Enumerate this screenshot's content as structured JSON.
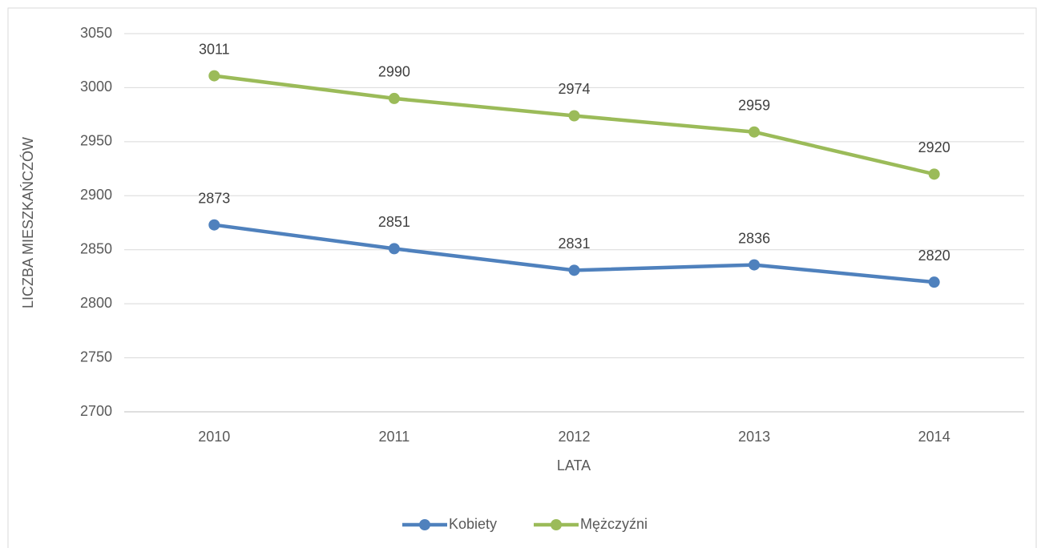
{
  "chart_data": {
    "type": "line",
    "categories": [
      "2010",
      "2011",
      "2012",
      "2013",
      "2014"
    ],
    "series": [
      {
        "name": "Kobiety",
        "color": "#4f81bd",
        "values": [
          2873,
          2851,
          2831,
          2836,
          2820
        ]
      },
      {
        "name": "Mężczyźni",
        "color": "#9bbb59",
        "values": [
          3011,
          2990,
          2974,
          2959,
          2920
        ]
      }
    ],
    "ylim": [
      2700,
      3050
    ],
    "yticks": [
      2700,
      2750,
      2800,
      2850,
      2900,
      2950,
      3000,
      3050
    ],
    "xlabel": "LATA",
    "ylabel": "LICZBA MIESZKAŃCZÓW",
    "grid": true,
    "legend": "bottom"
  }
}
